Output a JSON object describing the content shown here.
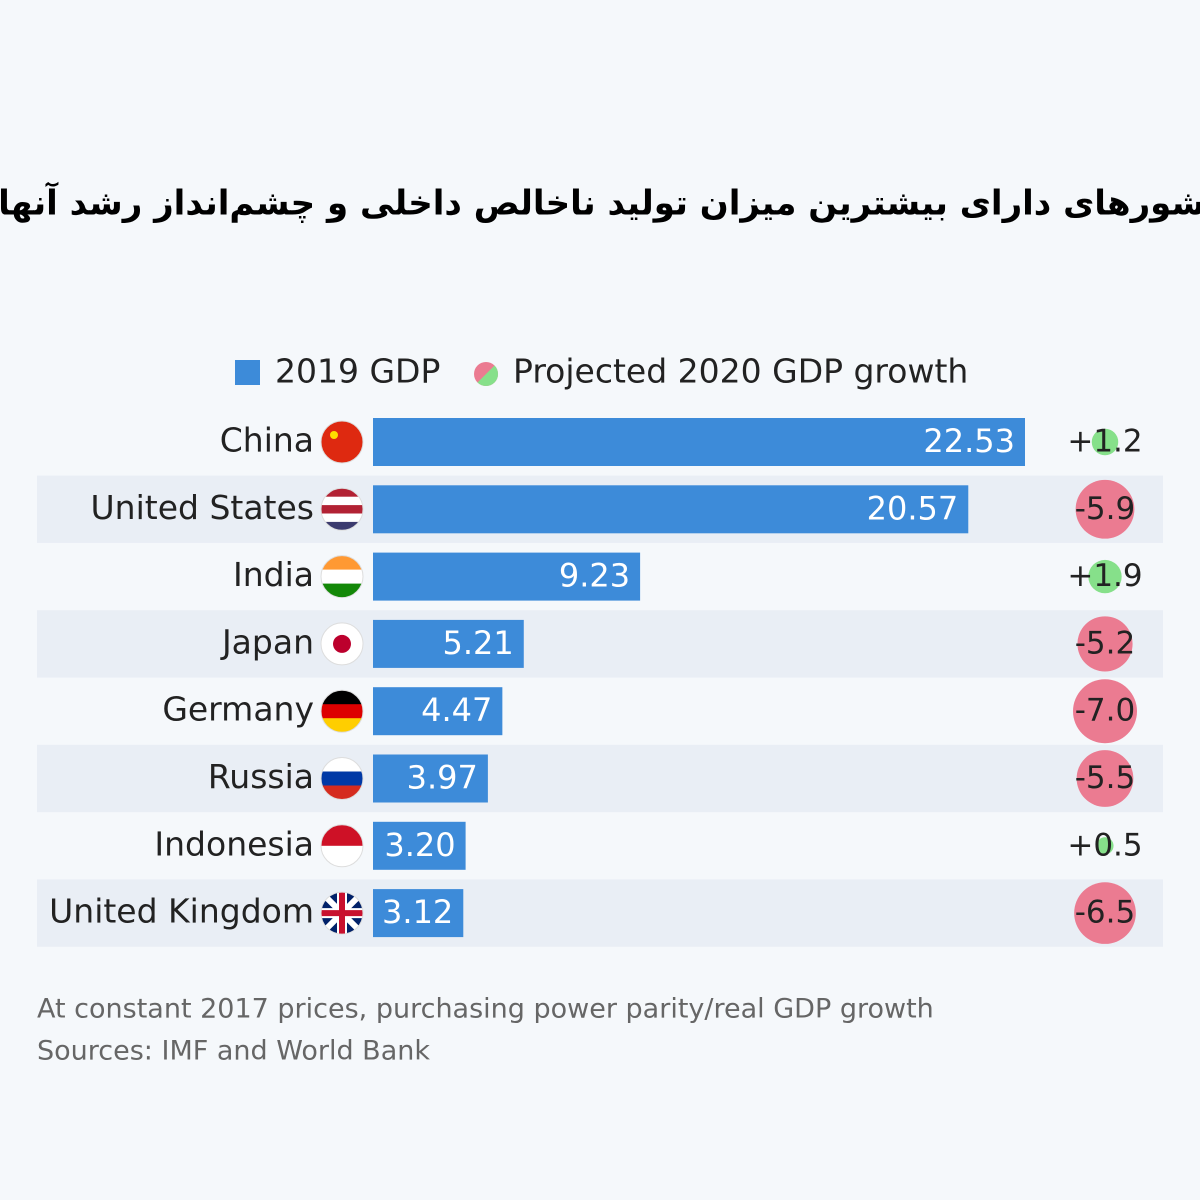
{
  "chart_data": {
    "type": "bar",
    "title": "کشورهای دارای بیشترین میزان تولید ناخالص داخلی و چشم‌انداز رشد آنها",
    "categories": [
      "China",
      "United States",
      "India",
      "Japan",
      "Germany",
      "Russia",
      "Indonesia",
      "United Kingdom"
    ],
    "series": [
      {
        "name": "2019 GDP",
        "color": "#3d8bd9",
        "values": [
          22.53,
          20.57,
          9.23,
          5.21,
          4.47,
          3.97,
          3.2,
          3.12
        ],
        "value_labels": [
          "22.53",
          "20.57",
          "9.23",
          "5.21",
          "4.47",
          "3.97",
          "3.20",
          "3.12"
        ]
      },
      {
        "name": "Projected 2020 GDP growth",
        "type": "bubble",
        "positive_color": "#86e08a",
        "negative_color": "#eb7b91",
        "values": [
          1.2,
          -5.9,
          1.9,
          -5.2,
          -7.0,
          -5.5,
          0.5,
          -6.5
        ],
        "value_labels": [
          "+1.2",
          "-5.9",
          "+1.9",
          "-5.2",
          "-7.0",
          "-5.5",
          "+0.5",
          "-6.5"
        ]
      }
    ],
    "notes": [
      "At constant 2017 prices, purchasing power parity/real GDP growth",
      "Sources: IMF and World Bank"
    ]
  }
}
